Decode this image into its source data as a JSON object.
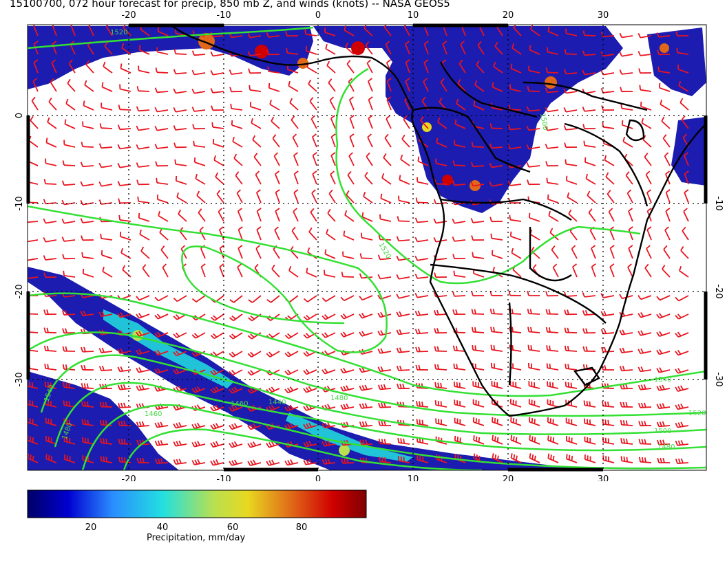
{
  "title": "15100700, 072 hour forecast for precip, 850 mb Z, and winds (knots) -- NASA GEOS5",
  "map": {
    "projection": "cylindrical",
    "lon_range": [
      -30,
      40
    ],
    "lat_range": [
      -40,
      10
    ],
    "lon_ticks": [
      "-20",
      "-10",
      "0",
      "10",
      "20",
      "30"
    ],
    "lat_ticks": [
      "0",
      "-10",
      "-20",
      "-30"
    ],
    "colors": {
      "wind_barbs": "#e8141e",
      "height_contours": "#33e033",
      "coastlines": "#000000",
      "gridlines": "#000000"
    },
    "contour_labels": [
      "1500",
      "1520",
      "1540",
      "1480",
      "1460",
      "1440"
    ]
  },
  "colorbar": {
    "ticks": [
      "20",
      "40",
      "60",
      "80"
    ],
    "label": "Precipitation, mm/day",
    "range": [
      0,
      100
    ],
    "colors": [
      "#000066",
      "#0000d0",
      "#2a8cff",
      "#22e0e0",
      "#b8e050",
      "#e8d820",
      "#e06818",
      "#d00000",
      "#800000"
    ]
  }
}
